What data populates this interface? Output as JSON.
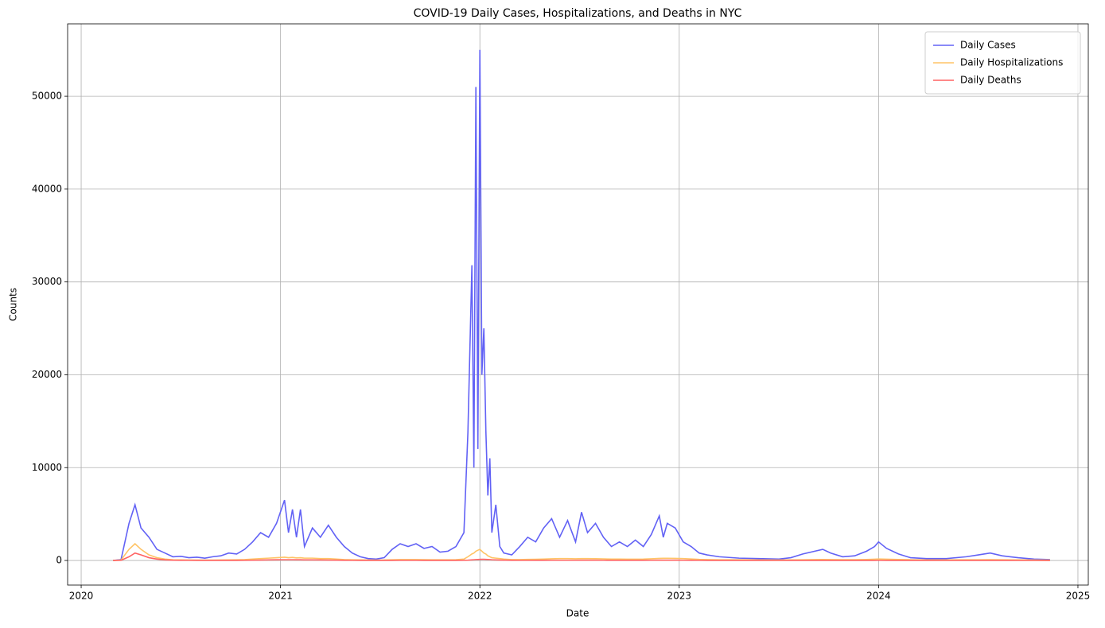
{
  "chart_data": {
    "type": "line",
    "title": "COVID-19 Daily Cases, Hospitalizations, and Deaths in NYC",
    "x_label": "Date",
    "y_label": "Counts",
    "x": [
      2020.16,
      2020.2,
      2020.24,
      2020.27,
      2020.3,
      2020.34,
      2020.38,
      2020.42,
      2020.46,
      2020.5,
      2020.54,
      2020.58,
      2020.62,
      2020.66,
      2020.7,
      2020.74,
      2020.78,
      2020.82,
      2020.86,
      2020.9,
      2020.94,
      2020.98,
      2021.02,
      2021.04,
      2021.06,
      2021.08,
      2021.1,
      2021.12,
      2021.16,
      2021.2,
      2021.24,
      2021.28,
      2021.32,
      2021.36,
      2021.4,
      2021.44,
      2021.48,
      2021.52,
      2021.56,
      2021.6,
      2021.64,
      2021.68,
      2021.72,
      2021.76,
      2021.8,
      2021.84,
      2021.88,
      2021.92,
      2021.94,
      2021.96,
      2021.97,
      2021.98,
      2021.99,
      2022.0,
      2022.01,
      2022.02,
      2022.03,
      2022.04,
      2022.05,
      2022.06,
      2022.08,
      2022.1,
      2022.12,
      2022.16,
      2022.2,
      2022.24,
      2022.28,
      2022.32,
      2022.36,
      2022.4,
      2022.44,
      2022.48,
      2022.51,
      2022.54,
      2022.58,
      2022.62,
      2022.66,
      2022.7,
      2022.74,
      2022.78,
      2022.82,
      2022.86,
      2022.9,
      2022.92,
      2022.94,
      2022.98,
      2023.02,
      2023.06,
      2023.1,
      2023.14,
      2023.2,
      2023.3,
      2023.4,
      2023.5,
      2023.56,
      2023.62,
      2023.68,
      2023.72,
      2023.76,
      2023.82,
      2023.88,
      2023.94,
      2023.98,
      2024.0,
      2024.04,
      2024.1,
      2024.16,
      2024.24,
      2024.34,
      2024.44,
      2024.5,
      2024.56,
      2024.62,
      2024.7,
      2024.78,
      2024.86
    ],
    "series": [
      {
        "name": "Daily Cases",
        "color": "#6262f5",
        "values": [
          0,
          100,
          4000,
          6000,
          3500,
          2500,
          1200,
          800,
          400,
          450,
          300,
          350,
          250,
          400,
          500,
          800,
          700,
          1200,
          2000,
          3000,
          2500,
          4000,
          6500,
          3000,
          5500,
          2500,
          5500,
          1500,
          3500,
          2500,
          3800,
          2500,
          1500,
          800,
          400,
          200,
          150,
          300,
          1200,
          1800,
          1500,
          1800,
          1300,
          1500,
          900,
          1000,
          1500,
          3000,
          13800,
          31800,
          10000,
          51000,
          12000,
          55000,
          20000,
          25000,
          14000,
          7000,
          11000,
          3000,
          6000,
          1500,
          800,
          600,
          1500,
          2500,
          2000,
          3500,
          4500,
          2500,
          4300,
          2000,
          5200,
          3000,
          4000,
          2500,
          1500,
          2000,
          1500,
          2200,
          1500,
          2800,
          4800,
          2500,
          4000,
          3500,
          2000,
          1500,
          800,
          600,
          400,
          250,
          200,
          150,
          300,
          700,
          1000,
          1200,
          800,
          400,
          500,
          1000,
          1500,
          2000,
          1300,
          700,
          300,
          200,
          200,
          400,
          600,
          800,
          500,
          300,
          150,
          100
        ]
      },
      {
        "name": "Daily Hospitalizations",
        "color": "#ffc466",
        "values": [
          0,
          50,
          1200,
          1800,
          1200,
          600,
          300,
          150,
          80,
          60,
          50,
          40,
          40,
          40,
          50,
          60,
          80,
          100,
          150,
          200,
          250,
          300,
          350,
          300,
          330,
          280,
          300,
          250,
          250,
          200,
          200,
          150,
          100,
          80,
          60,
          50,
          40,
          50,
          80,
          100,
          100,
          100,
          90,
          80,
          80,
          80,
          90,
          150,
          400,
          700,
          800,
          1000,
          1100,
          1200,
          1000,
          800,
          700,
          500,
          400,
          300,
          250,
          200,
          150,
          100,
          100,
          120,
          130,
          150,
          180,
          200,
          200,
          180,
          200,
          200,
          190,
          170,
          150,
          150,
          140,
          140,
          150,
          180,
          220,
          230,
          240,
          220,
          200,
          160,
          120,
          100,
          80,
          70,
          60,
          50,
          60,
          80,
          100,
          110,
          100,
          90,
          90,
          110,
          140,
          160,
          140,
          110,
          80,
          60,
          60,
          70,
          80,
          90,
          80,
          60,
          50,
          40
        ]
      },
      {
        "name": "Daily Deaths",
        "color": "#ff6262",
        "values": [
          0,
          20,
          400,
          800,
          600,
          300,
          150,
          60,
          30,
          20,
          15,
          10,
          10,
          10,
          10,
          10,
          12,
          15,
          25,
          40,
          60,
          70,
          80,
          80,
          80,
          75,
          70,
          65,
          60,
          50,
          40,
          30,
          20,
          15,
          10,
          8,
          6,
          8,
          12,
          15,
          15,
          15,
          12,
          10,
          10,
          10,
          12,
          15,
          30,
          60,
          80,
          100,
          110,
          120,
          130,
          130,
          120,
          110,
          100,
          80,
          60,
          40,
          30,
          20,
          15,
          15,
          20,
          20,
          25,
          25,
          25,
          25,
          30,
          30,
          30,
          25,
          20,
          20,
          20,
          20,
          20,
          25,
          30,
          30,
          30,
          30,
          25,
          20,
          15,
          12,
          10,
          8,
          6,
          5,
          6,
          8,
          10,
          10,
          10,
          8,
          8,
          10,
          12,
          15,
          12,
          10,
          8,
          6,
          5,
          6,
          6,
          8,
          6,
          5,
          4,
          3
        ]
      }
    ],
    "xlim": [
      2019.932,
      2025.052
    ],
    "xticks": [
      2020,
      2021,
      2022,
      2023,
      2024,
      2025
    ],
    "ylim": [
      -2650,
      57800
    ],
    "yticks": [
      0,
      10000,
      20000,
      30000,
      40000,
      50000
    ],
    "grid": true,
    "legend": "upper right"
  }
}
